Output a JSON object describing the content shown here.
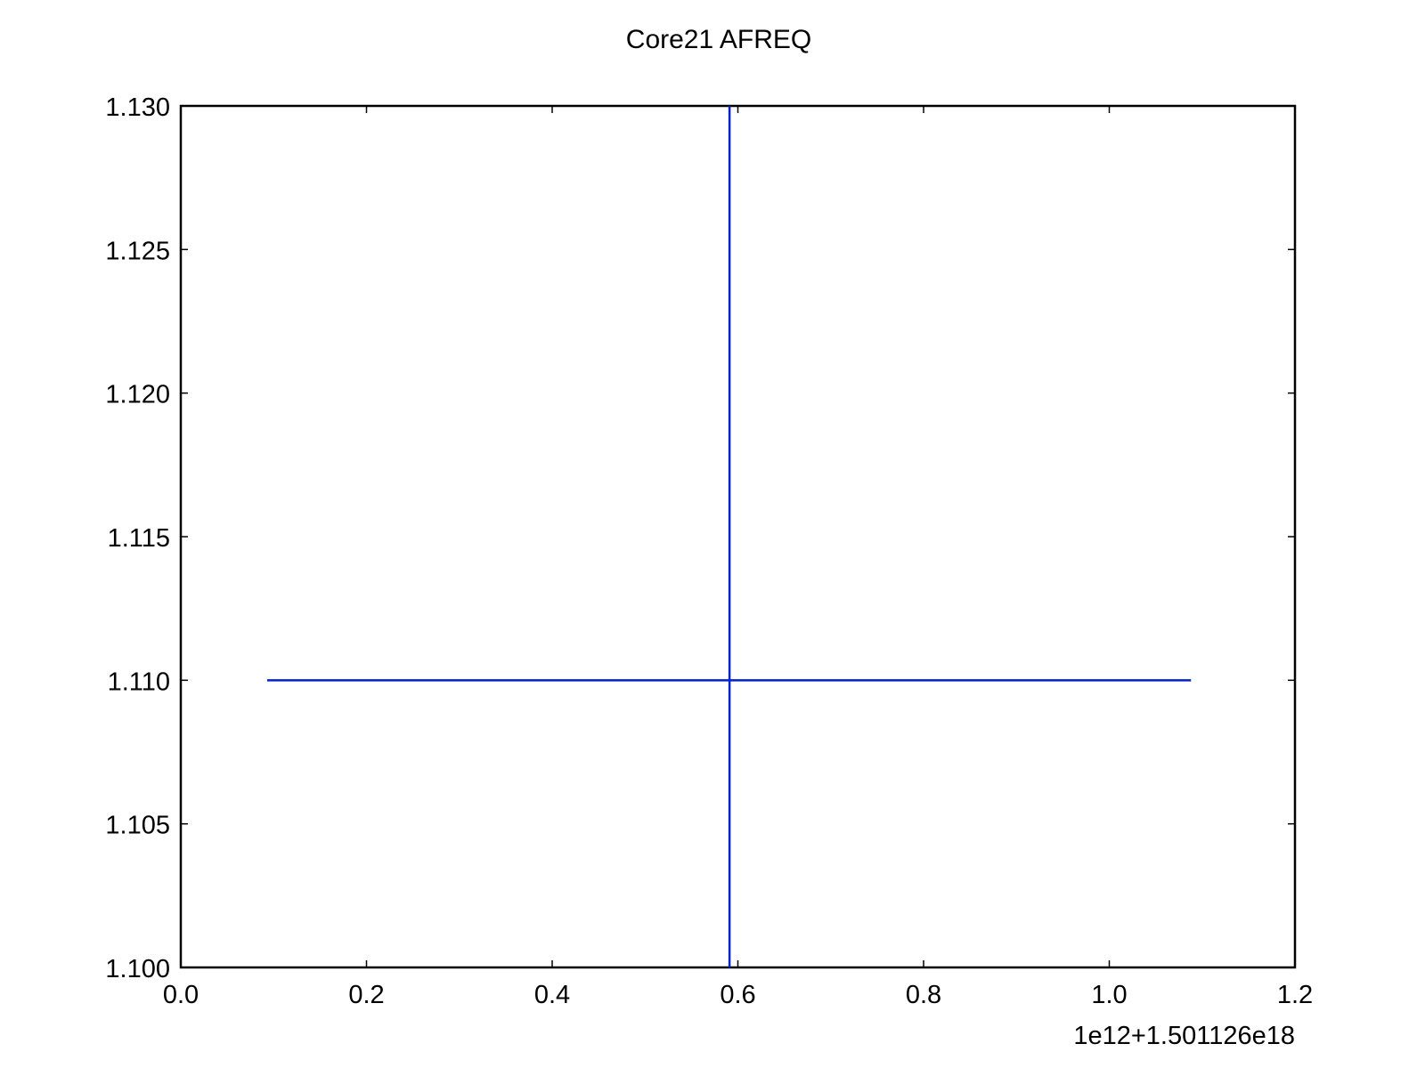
{
  "chart_data": {
    "type": "line",
    "title": "Core21 AFREQ",
    "xlabel": "",
    "ylabel": "",
    "x_offset_label": "1e12+1.501126e18",
    "xlim": [
      0.0,
      1.2
    ],
    "ylim": [
      1.1,
      1.13
    ],
    "x_ticks": [
      0.0,
      0.2,
      0.4,
      0.6,
      0.8,
      1.0,
      1.2
    ],
    "x_tick_labels": [
      "0.0",
      "0.2",
      "0.4",
      "0.6",
      "0.8",
      "1.0",
      "1.2"
    ],
    "y_ticks": [
      1.1,
      1.105,
      1.11,
      1.115,
      1.12,
      1.125,
      1.13
    ],
    "y_tick_labels": [
      "1.100",
      "1.105",
      "1.110",
      "1.115",
      "1.120",
      "1.125",
      "1.130"
    ],
    "grid": false,
    "series": [
      {
        "color": "#0022cc",
        "points": [
          {
            "x": 0.093,
            "y": 1.11
          },
          {
            "x": 1.088,
            "y": 1.11
          }
        ]
      },
      {
        "color": "#0022cc",
        "points": [
          {
            "x": 0.591,
            "y": 1.1
          },
          {
            "x": 0.591,
            "y": 1.13
          }
        ]
      }
    ]
  }
}
